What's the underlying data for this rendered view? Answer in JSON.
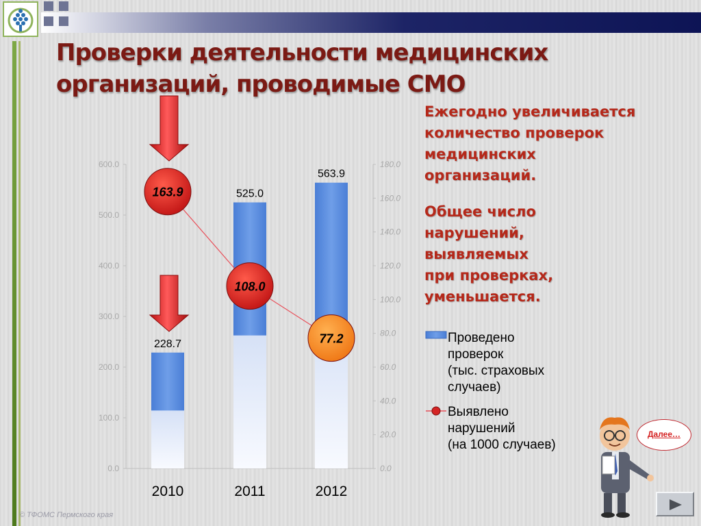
{
  "slide": {
    "title": "Проверки деятельности медицинских организаций, проводимые СМО",
    "note1": "Ежегодно увеличивается\nколичество проверок\nмедицинских\nорганизаций.",
    "note2": "Общее число\nнарушений,\nвыявляемых\nпри проверках,\nуменьшается.",
    "footer": "© ТФОМС Пермского края",
    "bubble_link": "Далее…",
    "icons": [
      "logo-icon",
      "down-arrow-icon",
      "teacher-mascot-icon",
      "play-icon"
    ]
  },
  "colors": {
    "bar_blue": "#5b8ee0",
    "bar_light": "#eaf0fb",
    "title": "#7b1a14",
    "notes": "#b5281a",
    "marker_red": "#d42424",
    "marker_orange": "#f07a1c",
    "trend_line": "#e8505a"
  },
  "chart_data": {
    "type": "bar",
    "categories": [
      "2010",
      "2011",
      "2012"
    ],
    "series": [
      {
        "name": "Проведено\nпроверок\n(тыс. страховых\nслучаев)",
        "axis": "left",
        "values": [
          228.7,
          525.0,
          563.9
        ],
        "labels": [
          "228.7",
          "525.0",
          "563.9"
        ]
      },
      {
        "name": "Выявлено\nнарушений\n(на 1000 случаев)",
        "type": "line",
        "axis": "right",
        "values": [
          163.9,
          108.0,
          77.2
        ],
        "labels": [
          "163.9",
          "108.0",
          "77.2"
        ]
      }
    ],
    "y_left": {
      "ylim": [
        0,
        600
      ],
      "ticks": [
        "0.0",
        "100.0",
        "200.0",
        "300.0",
        "400.0",
        "500.0",
        "600.0"
      ]
    },
    "y_right": {
      "ylim": [
        0,
        180
      ],
      "ticks": [
        "0.0",
        "20.0",
        "40.0",
        "60.0",
        "80.0",
        "100.0",
        "120.0",
        "140.0",
        "160.0",
        "180.0"
      ]
    },
    "legend_position": "right",
    "grid": false
  }
}
